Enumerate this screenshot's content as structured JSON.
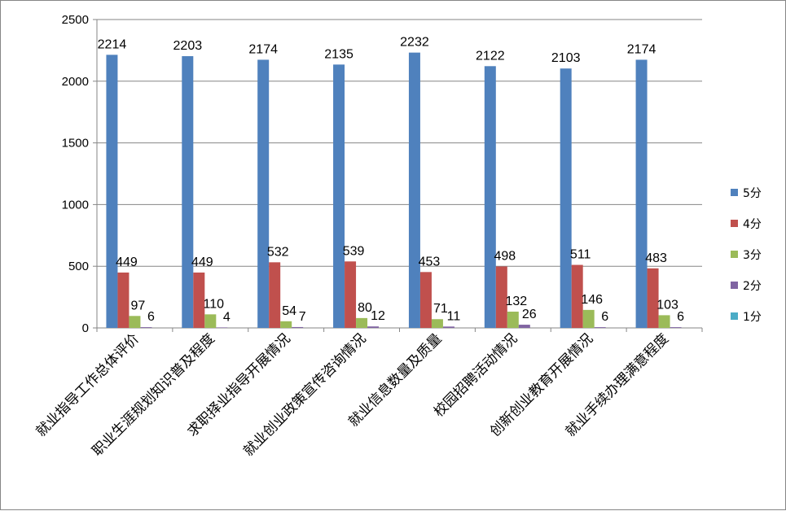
{
  "chart_data": {
    "type": "bar",
    "categories": [
      "就业指导工作总体评价",
      "职业生涯规划知识普及程度",
      "求职择业指导开展情况",
      "就业创业政策宣传咨询情况",
      "就业信息数量及质量",
      "校园招聘活动情况",
      "创新创业教育开展情况",
      "就业手续办理满意程度"
    ],
    "series": [
      {
        "name": "5分",
        "color": "#4F81BD",
        "values": [
          2214,
          2203,
          2174,
          2135,
          2232,
          2122,
          2103,
          2174
        ]
      },
      {
        "name": "4分",
        "color": "#C0504D",
        "values": [
          449,
          449,
          532,
          539,
          453,
          498,
          511,
          483
        ]
      },
      {
        "name": "3分",
        "color": "#9BBB59",
        "values": [
          97,
          110,
          54,
          80,
          71,
          132,
          146,
          103
        ]
      },
      {
        "name": "2分",
        "color": "#8064A2",
        "values": [
          6,
          4,
          7,
          12,
          11,
          26,
          6,
          6
        ]
      },
      {
        "name": "1分",
        "color": "#4BACC6",
        "values": [
          null,
          null,
          null,
          null,
          null,
          null,
          null,
          null
        ]
      }
    ],
    "ylim": [
      0,
      2500
    ],
    "yticks": [
      0,
      500,
      1000,
      1500,
      2000,
      2500
    ],
    "grid": true,
    "legend": "right",
    "title": "",
    "xlabel": "",
    "ylabel": ""
  }
}
